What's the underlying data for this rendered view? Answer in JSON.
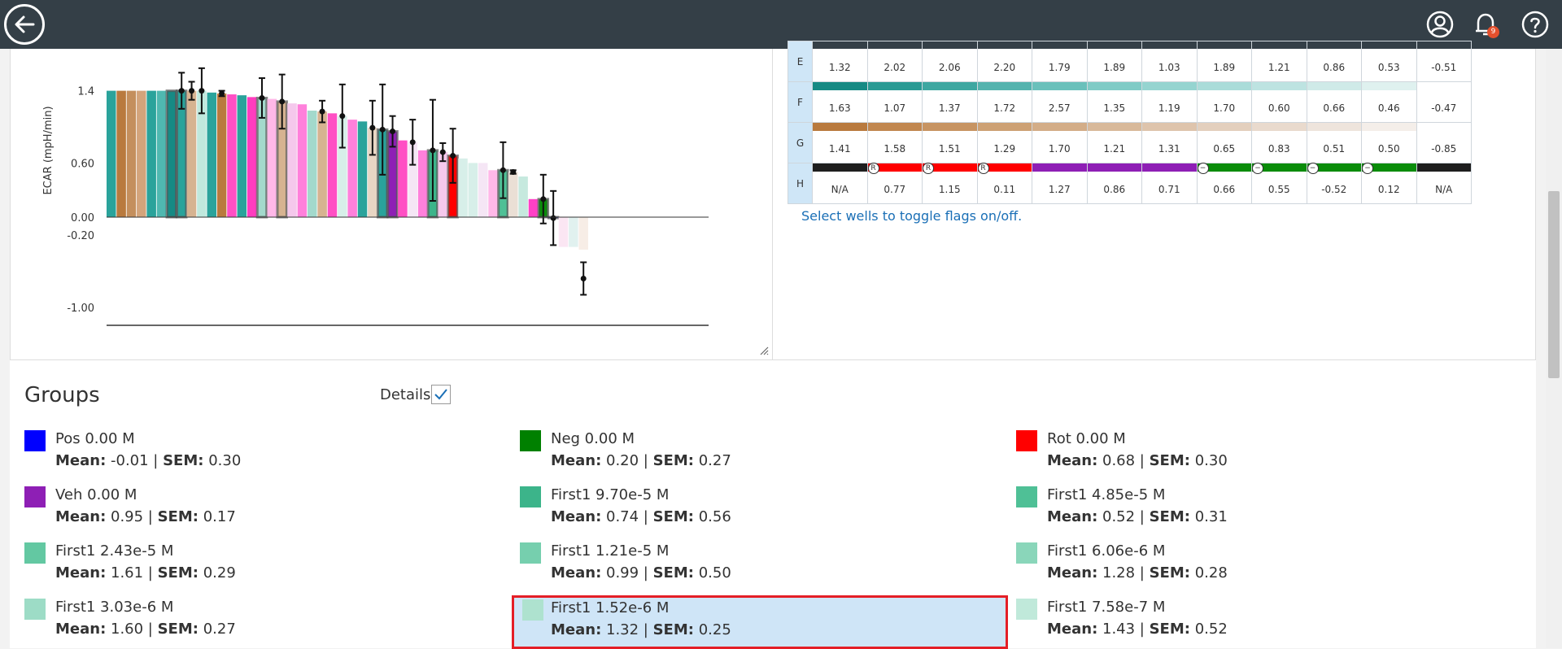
{
  "topbar": {
    "notification_count": "9"
  },
  "chart_data": {
    "type": "bar",
    "ylabel": "ECAR (mpH/min)",
    "yticks": [
      "1.4",
      "0.60",
      "0.00",
      "-0.20",
      "-1.00"
    ],
    "ylim": [
      -1.0,
      1.4
    ],
    "bars": [
      {
        "value": 1.4,
        "color": "#2aa39b"
      },
      {
        "value": 1.4,
        "color": "#b97a3e"
      },
      {
        "value": 1.4,
        "color": "#c48f5d"
      },
      {
        "value": 1.4,
        "color": "#d3a47b"
      },
      {
        "value": 1.4,
        "color": "#2aa39b"
      },
      {
        "value": 1.4,
        "color": "#4fb8b0"
      },
      {
        "value": 1.4,
        "color": "#168a84",
        "flagged": true
      },
      {
        "value": 1.4,
        "color": "#2aa39b",
        "flagged": true,
        "err": 0.2
      },
      {
        "value": 1.4,
        "color": "#d6b391",
        "err": 0.1
      },
      {
        "value": 1.4,
        "color": "#bfe8dd",
        "err": 0.25
      },
      {
        "value": 1.38,
        "color": "#2aa39b"
      },
      {
        "value": 1.37,
        "color": "#b97a3e",
        "err": 0.03
      },
      {
        "value": 1.36,
        "color": "#ff4fc4"
      },
      {
        "value": 1.35,
        "color": "#2aa39b"
      },
      {
        "value": 1.33,
        "color": "#ff3dbf"
      },
      {
        "value": 1.32,
        "color": "#a3d9cc",
        "flagged": true,
        "err": 0.22
      },
      {
        "value": 1.31,
        "color": "#ffb8e8"
      },
      {
        "value": 1.28,
        "color": "#d6b391",
        "flagged": true,
        "err": 0.3
      },
      {
        "value": 1.26,
        "color": "#f5c8ec"
      },
      {
        "value": 1.25,
        "color": "#ff80db"
      },
      {
        "value": 1.18,
        "color": "#a3d9cc"
      },
      {
        "value": 1.17,
        "color": "#d6b391",
        "err": 0.12
      },
      {
        "value": 1.15,
        "color": "#ff4fc4"
      },
      {
        "value": 1.12,
        "color": "#d7efe9",
        "err": 0.35
      },
      {
        "value": 1.08,
        "color": "#ff80db"
      },
      {
        "value": 1.06,
        "color": "#2aa39b"
      },
      {
        "value": 0.99,
        "color": "#e8d6c4",
        "err": 0.3
      },
      {
        "value": 0.97,
        "color": "#2aa39b",
        "flagged": true,
        "err": 0.5
      },
      {
        "value": 0.95,
        "color": "#8e1fb5",
        "flagged": true,
        "err": 0.17
      },
      {
        "value": 0.85,
        "color": "#ff4fc4"
      },
      {
        "value": 0.83,
        "color": "#f5e6f5",
        "err": 0.25
      },
      {
        "value": 0.74,
        "color": "#ff80db"
      },
      {
        "value": 0.74,
        "color": "#3cb48a",
        "flagged": true,
        "err": 0.56
      },
      {
        "value": 0.72,
        "color": "#f5c8ec",
        "err": 0.1
      },
      {
        "value": 0.68,
        "color": "#ff0000",
        "flagged": true,
        "err": 0.3
      },
      {
        "value": 0.65,
        "color": "#d7efe9"
      },
      {
        "value": 0.6,
        "color": "#d7efe9"
      },
      {
        "value": 0.6,
        "color": "#f5e6f5"
      },
      {
        "value": 0.52,
        "color": "#ffb8e8"
      },
      {
        "value": 0.52,
        "color": "#4fc096",
        "flagged": true,
        "err": 0.31
      },
      {
        "value": 0.5,
        "color": "#eadfd5",
        "err": 0.02
      },
      {
        "value": 0.45,
        "color": "#c6e9de"
      },
      {
        "value": 0.2,
        "color": "#ff40c6"
      },
      {
        "value": 0.2,
        "color": "#0a8c0a",
        "flagged": true,
        "err": 0.27
      },
      {
        "value": -0.01,
        "color": "#1a1aff",
        "flagged": true,
        "err": 0.3
      },
      {
        "value": -0.33,
        "color": "#fbe6f3"
      },
      {
        "value": -0.33,
        "color": "#e1f1ef"
      },
      {
        "value": -0.36,
        "color": "#f7ede6",
        "point": -0.68,
        "err": 0.18
      }
    ]
  },
  "plate": {
    "cols": 12,
    "rows": [
      {
        "label": "E",
        "bar": null,
        "flags": [],
        "values": [
          "1.32",
          "2.02",
          "2.06",
          "2.20",
          "1.79",
          "1.89",
          "1.03",
          "1.89",
          "1.21",
          "0.86",
          "0.53",
          "-0.51"
        ]
      },
      {
        "label": "F",
        "bar": [
          "#168a84",
          "#2a9a94",
          "#3ea7a1",
          "#54b3ae",
          "#6ac0bb",
          "#80cbc6",
          "#95d4d0",
          "#aadcd9",
          "#bde3e1",
          "#cfeae8",
          "#dff1ef",
          "#ffffff"
        ],
        "flags": [],
        "values": [
          "1.63",
          "1.07",
          "1.37",
          "1.72",
          "2.57",
          "1.35",
          "1.19",
          "1.70",
          "0.60",
          "0.66",
          "0.46",
          "-0.47"
        ]
      },
      {
        "label": "G",
        "bar": [
          "#b97a3e",
          "#c1874f",
          "#c79462",
          "#cda174",
          "#d3ad87",
          "#d8b99a",
          "#dec4ac",
          "#e3cfbd",
          "#e9dacd",
          "#eee4dc",
          "#f4eee9",
          "#ffffff"
        ],
        "flags": [],
        "values": [
          "1.41",
          "1.58",
          "1.51",
          "1.29",
          "1.70",
          "1.21",
          "1.31",
          "0.65",
          "0.83",
          "0.51",
          "0.50",
          "-0.85"
        ]
      },
      {
        "label": "H",
        "bar": [
          "#1e1e1e",
          "#ff0000",
          "#ff0000",
          "#ff0000",
          "#8e1fb5",
          "#8e1fb5",
          "#8e1fb5",
          "#0a8c0a",
          "#0a8c0a",
          "#0a8c0a",
          "#0a8c0a",
          "#1e1e1e"
        ],
        "flags": [
          "",
          "R",
          "R",
          "R",
          "",
          "",
          "",
          "−",
          "−",
          "−",
          "−",
          ""
        ],
        "values": [
          "N/A",
          "0.77",
          "1.15",
          "0.11",
          "1.27",
          "0.86",
          "0.71",
          "0.66",
          "0.55",
          "-0.52",
          "0.12",
          "N/A"
        ]
      }
    ],
    "toggle_note": "Select wells to toggle flags on/off."
  },
  "groups": {
    "title": "Groups",
    "details_label": "Details",
    "details_checked": true,
    "items": [
      {
        "name": "Pos 0.00 M",
        "mean": "-0.01",
        "sem": "0.30",
        "color": "#0000ff"
      },
      {
        "name": "Neg 0.00 M",
        "mean": "0.20",
        "sem": "0.27",
        "color": "#008000"
      },
      {
        "name": "Rot 0.00 M",
        "mean": "0.68",
        "sem": "0.30",
        "color": "#ff0000"
      },
      {
        "name": "Veh 0.00 M",
        "mean": "0.95",
        "sem": "0.17",
        "color": "#8e1fb5"
      },
      {
        "name": "First1 9.70e-5 M",
        "mean": "0.74",
        "sem": "0.56",
        "color": "#3cb48a"
      },
      {
        "name": "First1 4.85e-5 M",
        "mean": "0.52",
        "sem": "0.31",
        "color": "#4fc096"
      },
      {
        "name": "First1 2.43e-5 M",
        "mean": "1.61",
        "sem": "0.29",
        "color": "#63c8a2"
      },
      {
        "name": "First1 1.21e-5 M",
        "mean": "0.99",
        "sem": "0.50",
        "color": "#76cfae"
      },
      {
        "name": "First1 6.06e-6 M",
        "mean": "1.28",
        "sem": "0.28",
        "color": "#8ad6ba"
      },
      {
        "name": "First1 3.03e-6 M",
        "mean": "1.60",
        "sem": "0.27",
        "color": "#9ddcc6"
      },
      {
        "name": "First1 1.52e-6 M",
        "mean": "1.32",
        "sem": "0.25",
        "color": "#aee2cf",
        "selected": true
      },
      {
        "name": "First1 7.58e-7 M",
        "mean": "1.43",
        "sem": "0.52",
        "color": "#c0e9da"
      }
    ],
    "mean_label": "Mean:",
    "sem_label": "SEM:"
  }
}
